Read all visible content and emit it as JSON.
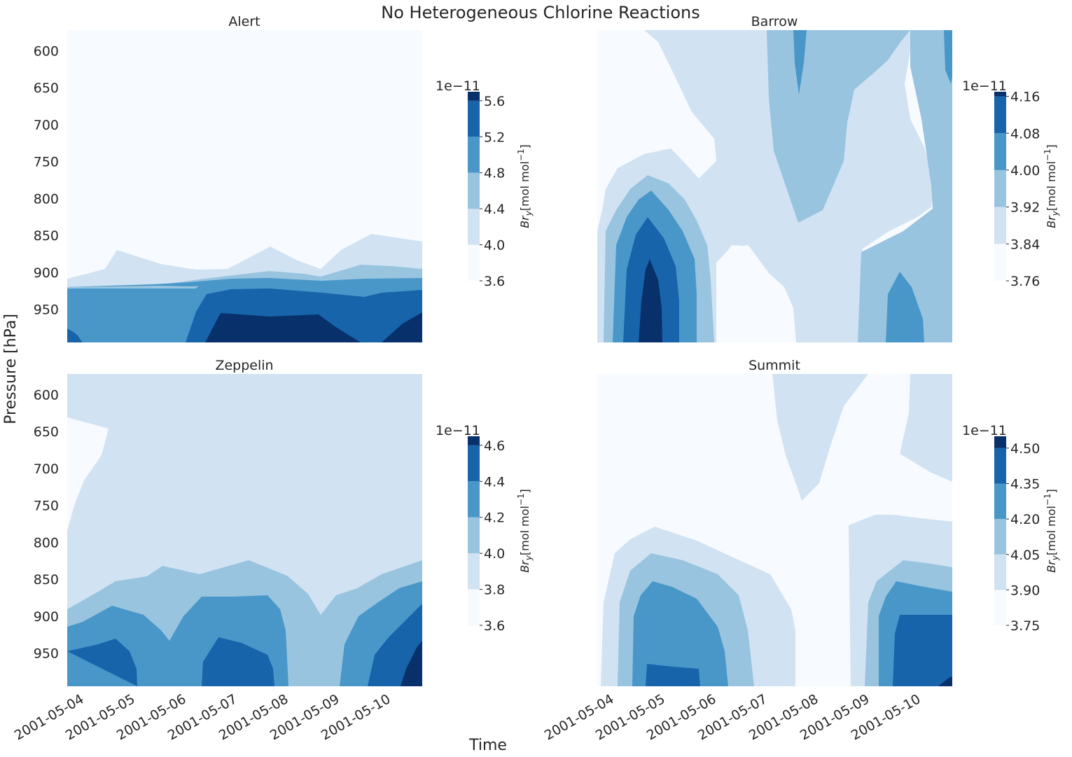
{
  "figure": {
    "suptitle": "No Heterogeneous Chlorine Reactions",
    "ylabel": "Pressure [hPa]",
    "xlabel": "Time"
  },
  "colors": {
    "levels": [
      "#f7fbff",
      "#d1e2f2",
      "#98c4df",
      "#4997c9",
      "#1764ab",
      "#08306b"
    ]
  },
  "chart_data": [
    {
      "type": "contour",
      "title": "Alert",
      "ylabel": "Pressure [hPa]",
      "yticks": [
        600,
        650,
        700,
        750,
        800,
        850,
        900,
        950
      ],
      "ylim": [
        995,
        572
      ],
      "xticks": [],
      "colorbar": {
        "label": "Br_y [mol mol^-1]",
        "offset": "1e−11",
        "ticks": [
          "5.6",
          "5.2",
          "4.8",
          "4.4",
          "4.0",
          "3.6"
        ],
        "levels": [
          3.6,
          4.0,
          4.4,
          4.8,
          5.2,
          5.6,
          5.7
        ]
      }
    },
    {
      "type": "contour",
      "title": "Barrow",
      "ylabel": "",
      "yticks": [],
      "ylim": [
        995,
        572
      ],
      "xticks": [],
      "colorbar": {
        "label": "Br_y [mol mol^-1]",
        "offset": "1e−11",
        "ticks": [
          "4.16",
          "4.08",
          "4.00",
          "3.92",
          "3.84",
          "3.76"
        ],
        "levels": [
          3.76,
          3.84,
          3.92,
          4.0,
          4.08,
          4.16,
          4.17
        ]
      }
    },
    {
      "type": "contour",
      "title": "Zeppelin",
      "ylabel": "Pressure [hPa]",
      "yticks": [
        600,
        650,
        700,
        750,
        800,
        850,
        900,
        950
      ],
      "ylim": [
        995,
        572
      ],
      "xticks": [
        "2001-05-04",
        "2001-05-05",
        "2001-05-06",
        "2001-05-07",
        "2001-05-08",
        "2001-05-09",
        "2001-05-10"
      ],
      "colorbar": {
        "label": "Br_y [mol mol^-1]",
        "offset": "1e−11",
        "ticks": [
          "4.6",
          "4.4",
          "4.2",
          "4.0",
          "3.8",
          "3.6"
        ],
        "levels": [
          3.6,
          3.8,
          4.0,
          4.2,
          4.4,
          4.6,
          4.65
        ]
      }
    },
    {
      "type": "contour",
      "title": "Summit",
      "ylabel": "",
      "yticks": [],
      "ylim": [
        995,
        572
      ],
      "xticks": [
        "2001-05-04",
        "2001-05-05",
        "2001-05-06",
        "2001-05-07",
        "2001-05-08",
        "2001-05-09",
        "2001-05-10"
      ],
      "colorbar": {
        "label": "Br_y [mol mol^-1]",
        "offset": "1e−11",
        "ticks": [
          "4.50",
          "4.35",
          "4.20",
          "4.05",
          "3.90",
          "3.75"
        ],
        "levels": [
          3.75,
          3.9,
          4.05,
          4.2,
          4.35,
          4.5,
          4.55
        ]
      }
    }
  ]
}
